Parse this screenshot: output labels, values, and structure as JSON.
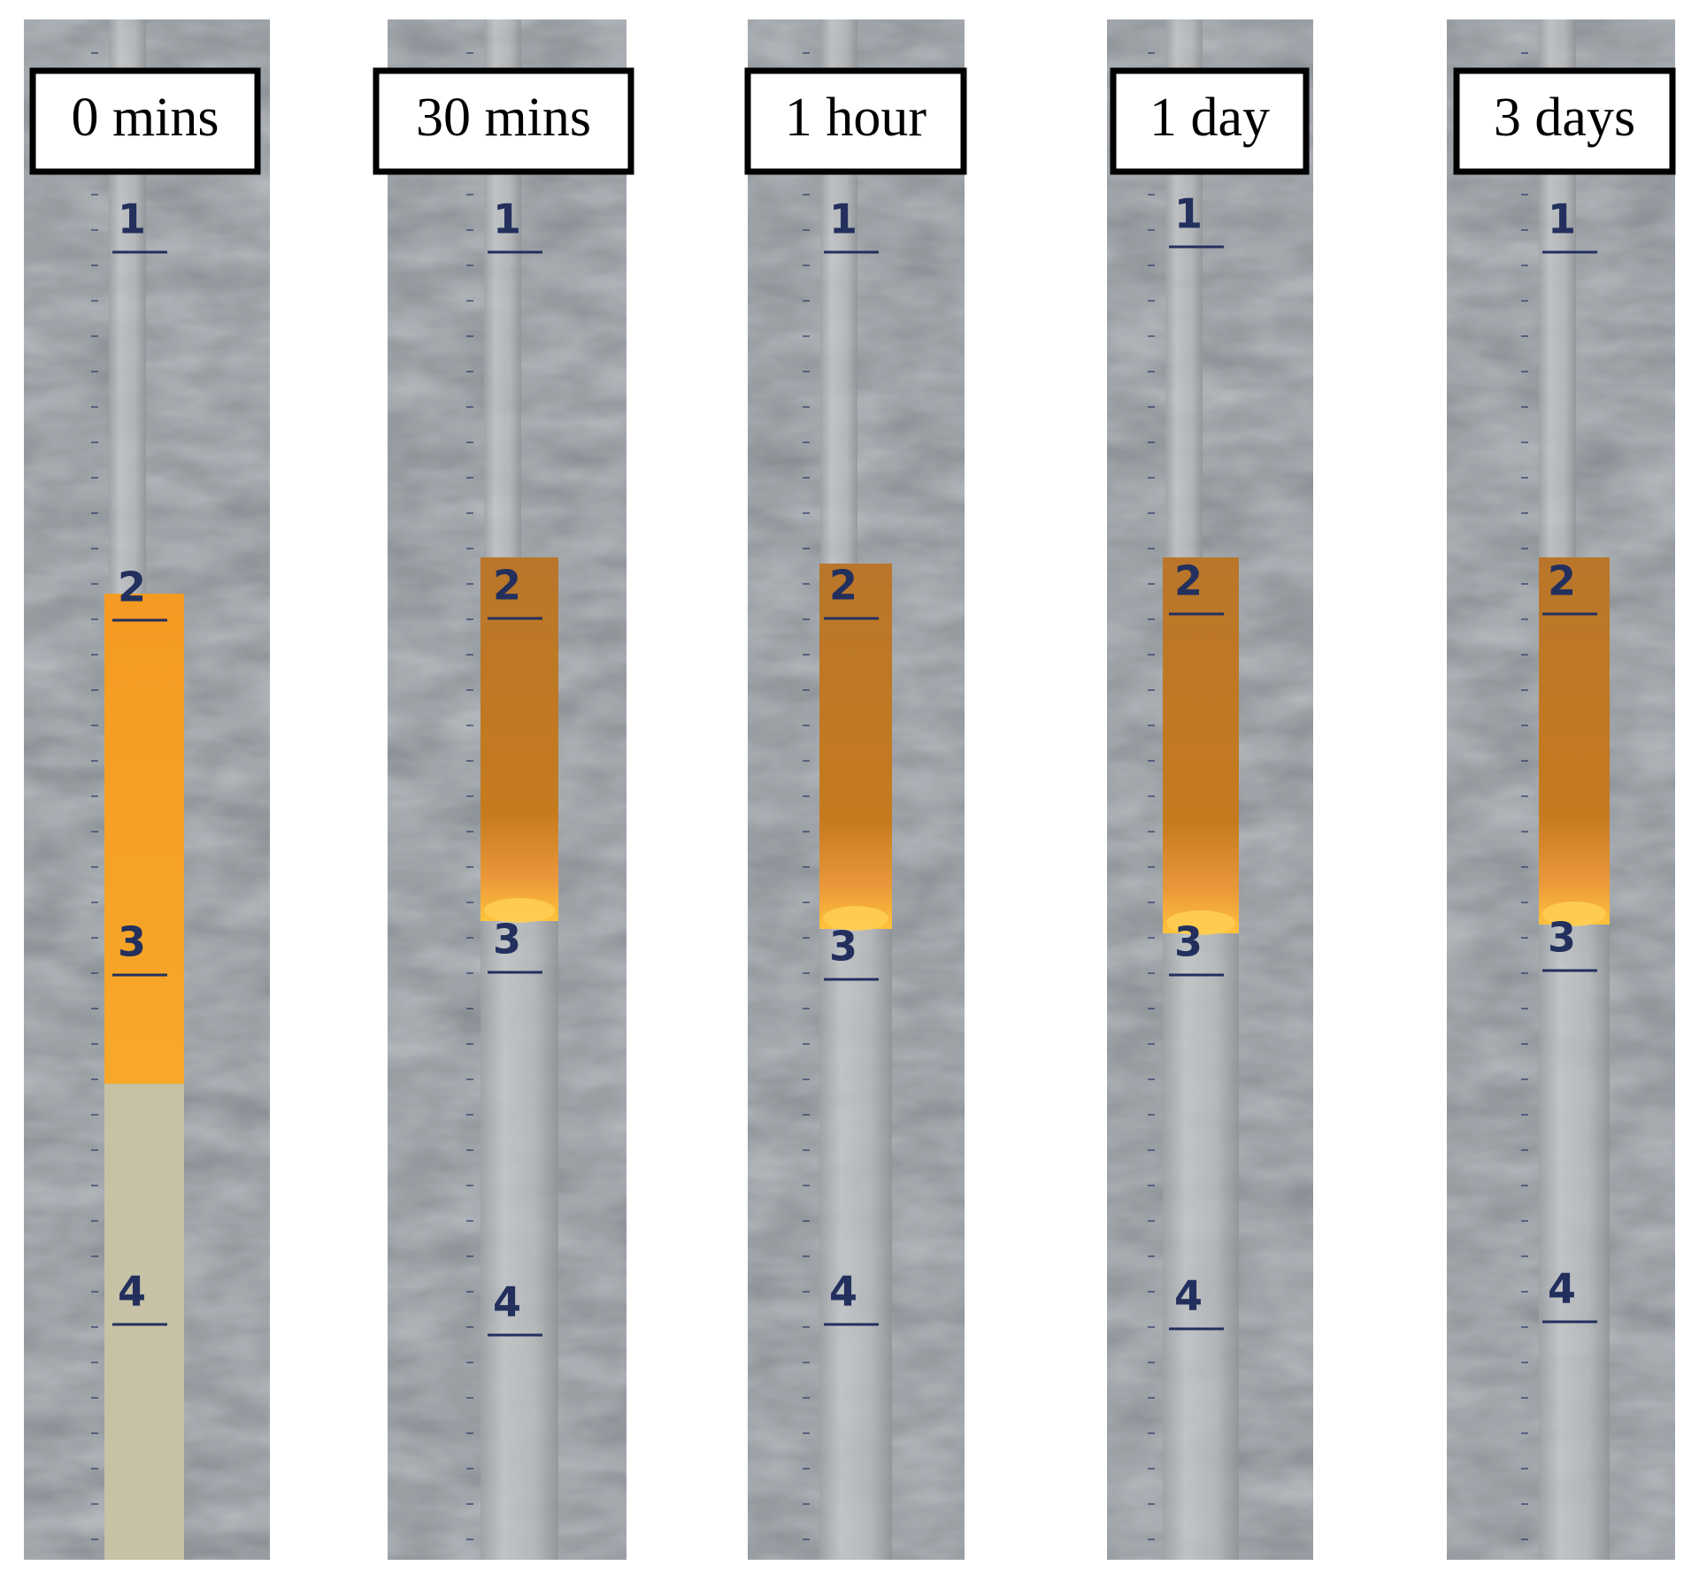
{
  "panels": [
    {
      "label": "0 mins",
      "scale": [
        "1",
        "2",
        "3",
        "4"
      ]
    },
    {
      "label": "30 mins",
      "scale": [
        "1",
        "2",
        "3",
        "4"
      ]
    },
    {
      "label": "1 hour",
      "scale": [
        "1",
        "2",
        "3",
        "4"
      ]
    },
    {
      "label": "1 day",
      "scale": [
        "1",
        "2",
        "3",
        "4"
      ]
    },
    {
      "label": "3 days",
      "scale": [
        "1",
        "2",
        "3",
        "4"
      ]
    }
  ]
}
